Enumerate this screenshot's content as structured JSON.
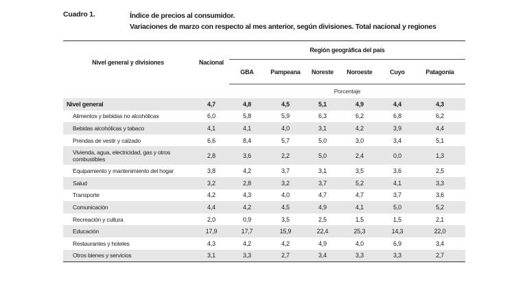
{
  "cuadro_label": "Cuadro 1.",
  "title_line1": "Índice de precios al consumidor.",
  "title_line2": "Variaciones de marzo con respecto al mes anterior, según divisiones. Total nacional y regiones",
  "table": {
    "header_row_label": "Nivel general y divisiones",
    "header_nacional": "Nacional",
    "header_region": "Región geográfica del país",
    "regions": [
      "GBA",
      "Pampeana",
      "Noreste",
      "Noroeste",
      "Cuyo",
      "Patagonia"
    ],
    "unit_label": "Porcentaje",
    "rows": [
      {
        "label": "Nivel general",
        "values": [
          "4,7",
          "4,8",
          "4,5",
          "5,1",
          "4,9",
          "4,4",
          "4,3"
        ]
      },
      {
        "label": "Alimentos y bebidas no alcohólicas",
        "values": [
          "6,0",
          "5,8",
          "5,9",
          "6,3",
          "6,2",
          "6,8",
          "6,2"
        ]
      },
      {
        "label": "Bebidas alcohólicas y tabaco",
        "values": [
          "4,1",
          "4,1",
          "4,0",
          "3,1",
          "4,2",
          "3,9",
          "4,4"
        ]
      },
      {
        "label": "Prendas de vestir y calzado",
        "values": [
          "6,6",
          "8,4",
          "5,7",
          "5,0",
          "3,0",
          "3,4",
          "5,1"
        ]
      },
      {
        "label": "Vivienda, agua, electricidad, gas y otros combustibles",
        "values": [
          "2,8",
          "3,6",
          "2,2",
          "5,0",
          "2,4",
          "0,0",
          "1,3"
        ]
      },
      {
        "label": "Equipamiento y mantenimiento del hogar",
        "values": [
          "3,8",
          "4,2",
          "3,7",
          "3,1",
          "3,5",
          "3,6",
          "2,5"
        ]
      },
      {
        "label": "Salud",
        "values": [
          "3,2",
          "2,8",
          "3,2",
          "3,7",
          "5,2",
          "4,1",
          "3,3"
        ]
      },
      {
        "label": "Transporte",
        "values": [
          "4,2",
          "4,3",
          "4,0",
          "4,7",
          "4,7",
          "3,7",
          "3,6"
        ]
      },
      {
        "label": "Comunicación",
        "values": [
          "4,4",
          "4,2",
          "4,5",
          "4,9",
          "4,1",
          "5,0",
          "5,2"
        ]
      },
      {
        "label": "Recreación y cultura",
        "values": [
          "2,0",
          "0,9",
          "3,5",
          "2,5",
          "1,5",
          "1,5",
          "2,1"
        ]
      },
      {
        "label": "Educación",
        "values": [
          "17,9",
          "17,7",
          "15,9",
          "22,4",
          "25,3",
          "14,3",
          "22,0"
        ]
      },
      {
        "label": "Restaurantes y hoteles",
        "values": [
          "4,3",
          "4,2",
          "4,2",
          "4,9",
          "4,0",
          "6,9",
          "3,4"
        ]
      },
      {
        "label": "Otros bienes y servicios",
        "values": [
          "3,1",
          "3,3",
          "2,7",
          "3,4",
          "3,3",
          "3,3",
          "2,7"
        ]
      }
    ]
  }
}
